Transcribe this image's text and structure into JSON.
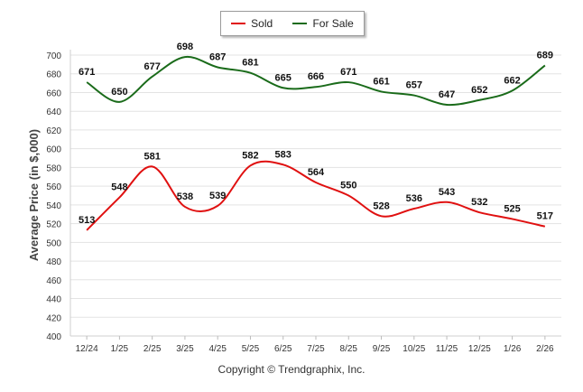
{
  "chart_data": {
    "type": "line",
    "title": "",
    "xlabel": "",
    "ylabel": "Average Price (in $,000)",
    "ylim": [
      400,
      700
    ],
    "ytick_step": 20,
    "grid": true,
    "legend_position": "top-center",
    "categories": [
      "12/24",
      "1/25",
      "2/25",
      "3/25",
      "4/25",
      "5/25",
      "6/25",
      "7/25",
      "8/25",
      "9/25",
      "10/25",
      "11/25",
      "12/25",
      "1/26",
      "2/26"
    ],
    "series": [
      {
        "name": "Sold",
        "color": "#e01010",
        "values": [
          513,
          548,
          581,
          538,
          539,
          582,
          583,
          564,
          550,
          528,
          536,
          543,
          532,
          525,
          517
        ]
      },
      {
        "name": "For Sale",
        "color": "#1a6b1a",
        "values": [
          671,
          650,
          677,
          698,
          687,
          681,
          665,
          666,
          671,
          661,
          657,
          647,
          652,
          662,
          689
        ]
      }
    ]
  },
  "footer": {
    "copyright": "Copyright © Trendgraphix, Inc."
  }
}
